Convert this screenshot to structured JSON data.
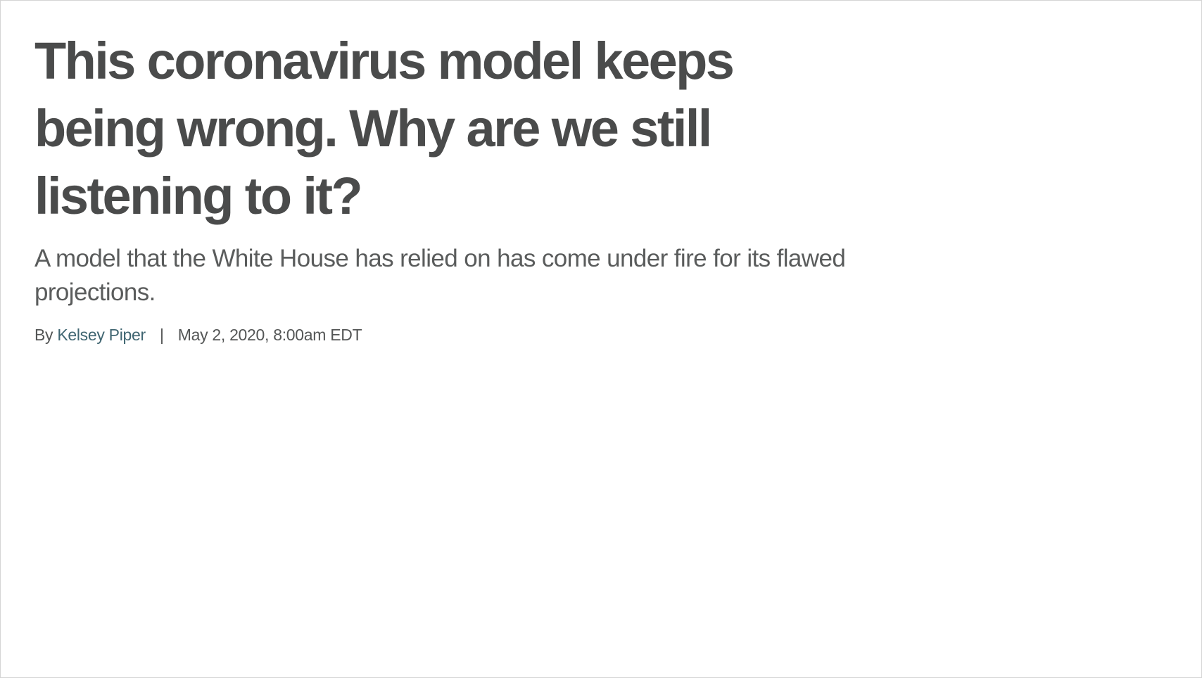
{
  "article": {
    "headline": "This coronavirus model keeps being wrong. Why are we still listening to it?",
    "dek": "A model that the White House has relied on has come under fire for its flawed projections.",
    "byline": {
      "prefix": "By",
      "author": "Kelsey Piper",
      "separator": "|",
      "timestamp": "May 2, 2020, 8:00am EDT"
    }
  },
  "colors": {
    "headline": "#4a4b4b",
    "dek": "#5a5c5c",
    "author_link": "#3f6571",
    "background": "#ffffff"
  }
}
